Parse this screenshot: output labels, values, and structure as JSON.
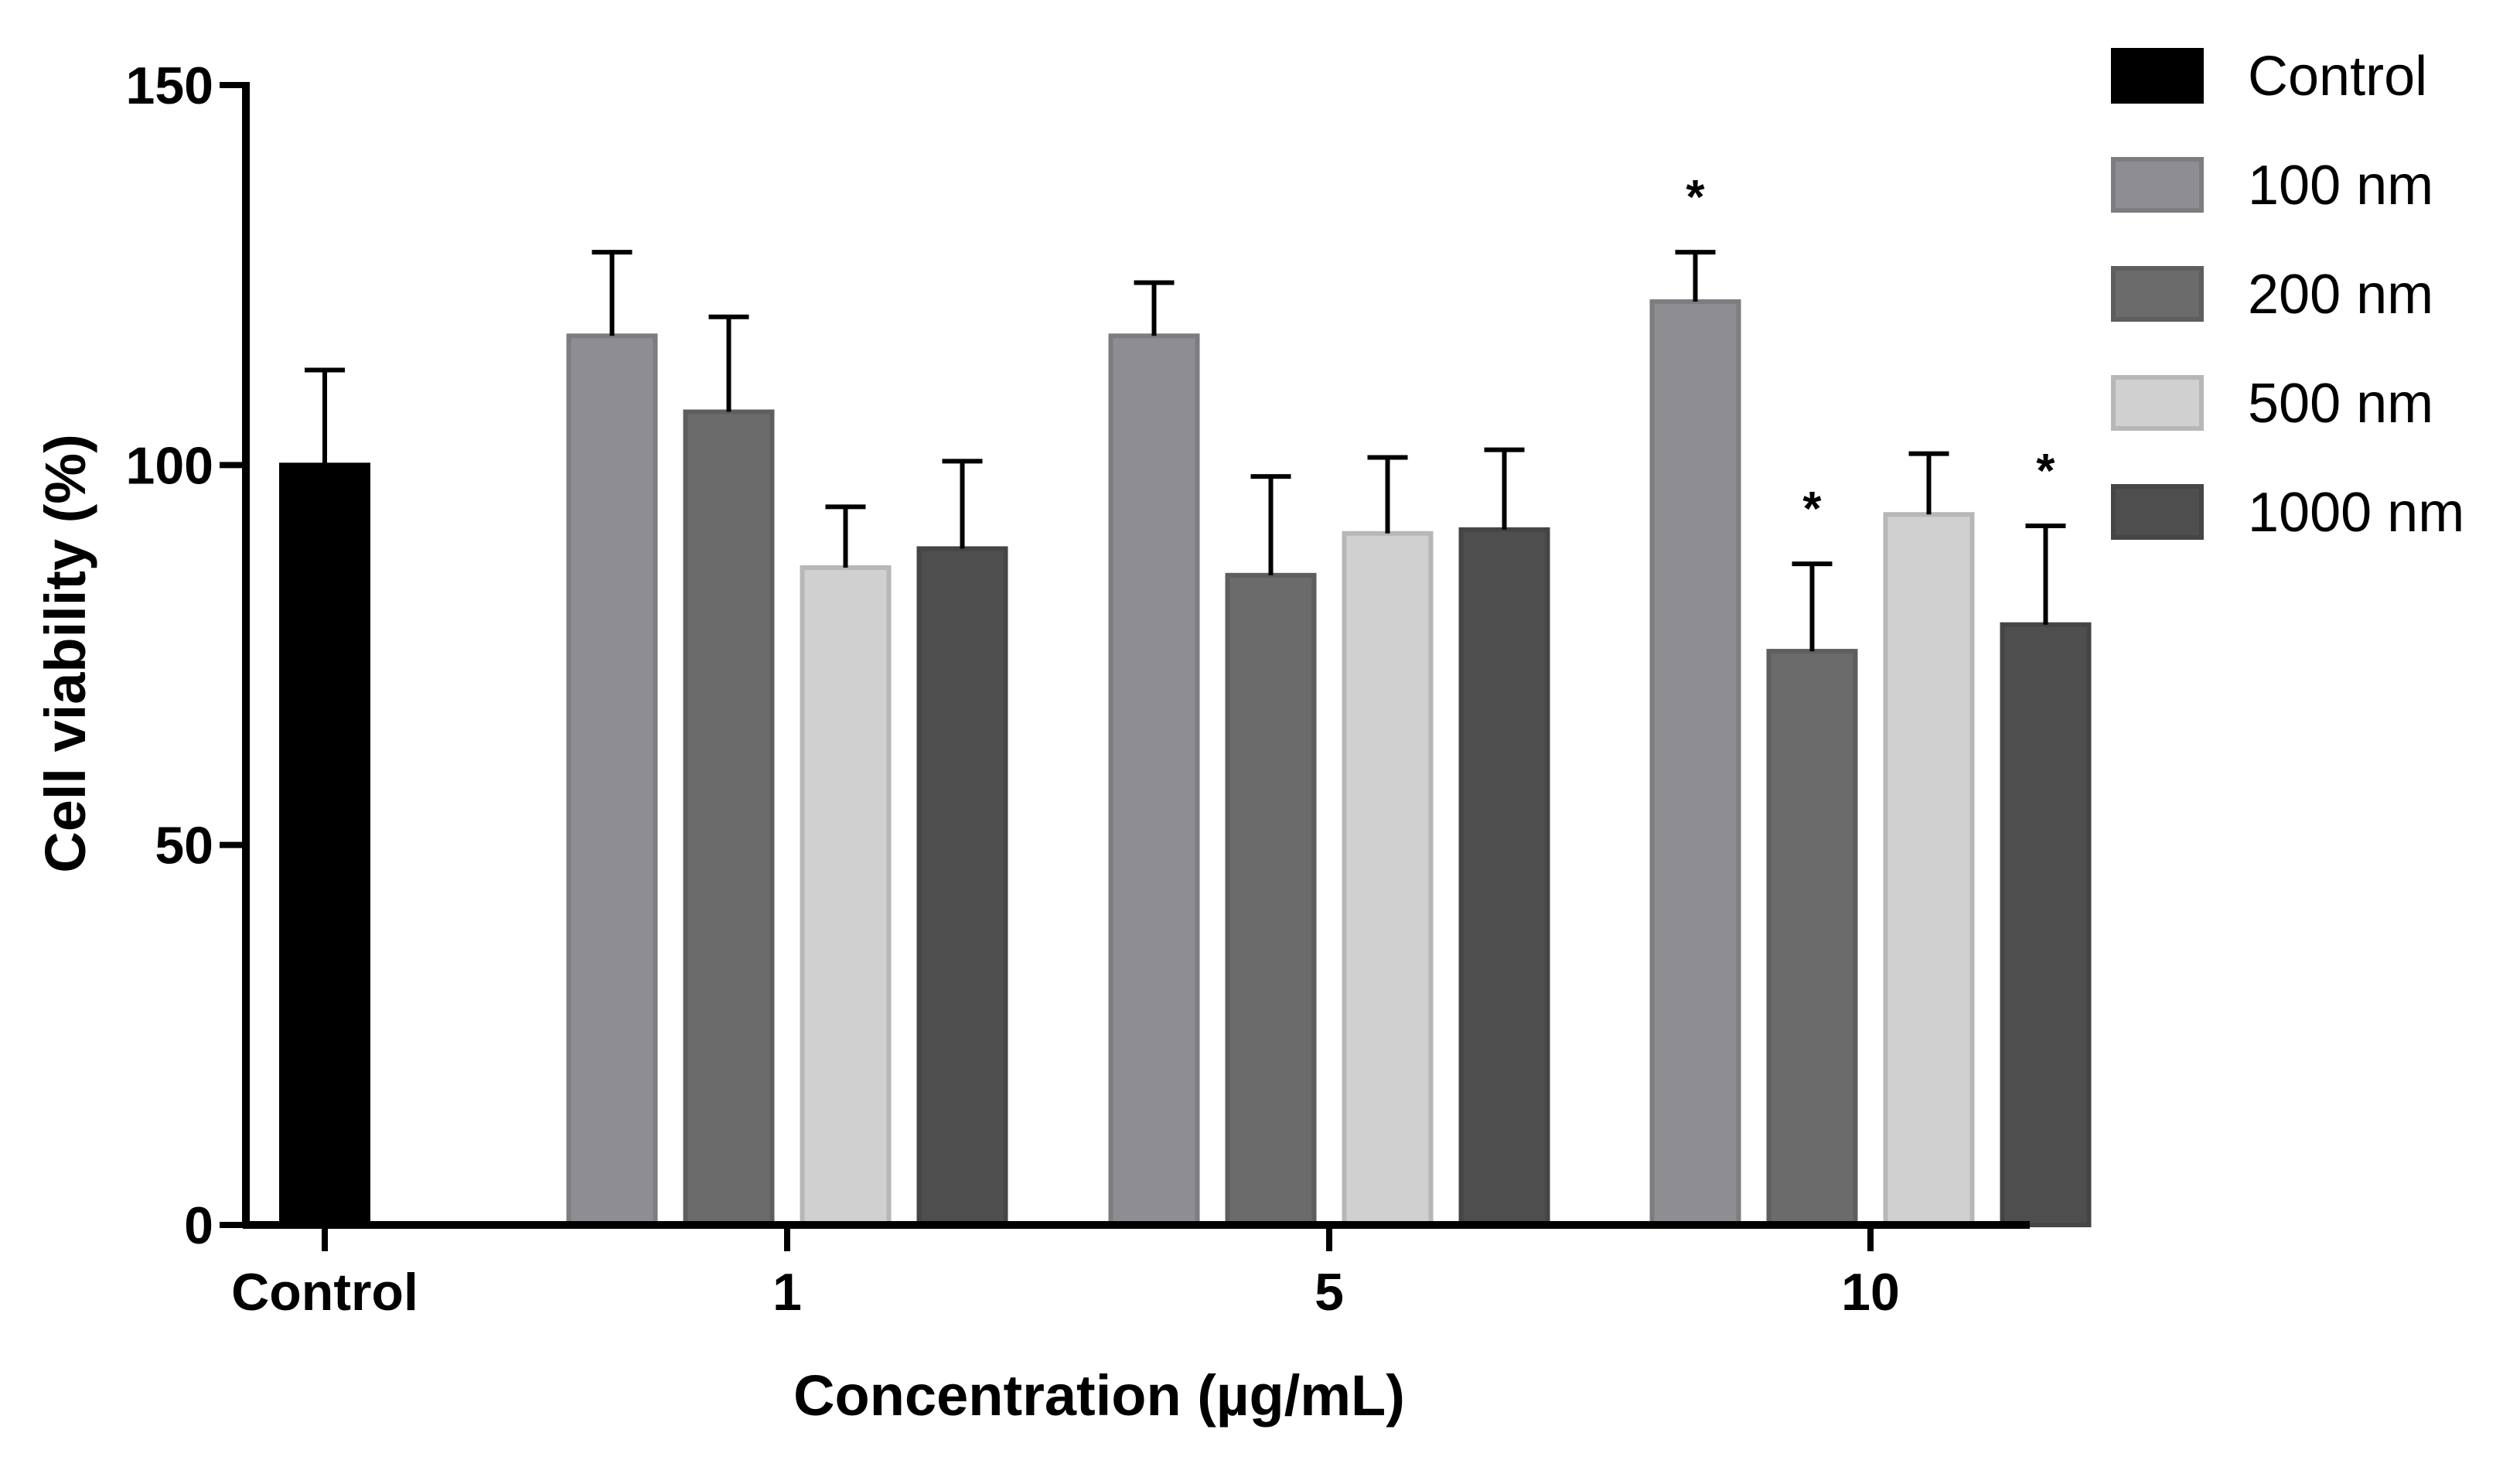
{
  "chart_data": {
    "type": "bar",
    "title": "",
    "xlabel": "Concentration (µg/mL)",
    "ylabel": "Cell viability (%)",
    "ylim": [
      0,
      150
    ],
    "yticks": [
      "0",
      "50",
      "100",
      "150"
    ],
    "categories": [
      "Control",
      "1",
      "5",
      "10"
    ],
    "series": [
      {
        "name": "Control",
        "color": "#000000",
        "values": [
          100.0,
          null,
          null,
          null
        ],
        "errors": [
          12.5,
          null,
          null,
          null
        ],
        "stars": [
          false,
          false,
          false,
          false
        ]
      },
      {
        "name": "100 nm",
        "color": "#8e8d92",
        "values": [
          null,
          117.0,
          117.0,
          121.5
        ],
        "errors": [
          null,
          11.0,
          7.0,
          6.5
        ],
        "stars": [
          false,
          false,
          false,
          true
        ]
      },
      {
        "name": "200 nm",
        "color": "#6b6b6b",
        "values": [
          null,
          107.0,
          85.5,
          75.5
        ],
        "errors": [
          null,
          12.5,
          13.0,
          11.5
        ],
        "stars": [
          false,
          false,
          false,
          true
        ]
      },
      {
        "name": "500 nm",
        "color": "#d0d0d0",
        "values": [
          null,
          86.5,
          91.0,
          93.5
        ],
        "errors": [
          null,
          8.0,
          10.0,
          8.0
        ],
        "stars": [
          false,
          false,
          false,
          false
        ]
      },
      {
        "name": "1000 nm",
        "color": "#4e4e4e",
        "values": [
          null,
          89.0,
          91.5,
          79.0
        ],
        "errors": [
          null,
          11.5,
          10.5,
          13.0
        ],
        "stars": [
          false,
          false,
          false,
          true
        ]
      }
    ],
    "significance_marker": "*",
    "legend_position": "top-right"
  }
}
